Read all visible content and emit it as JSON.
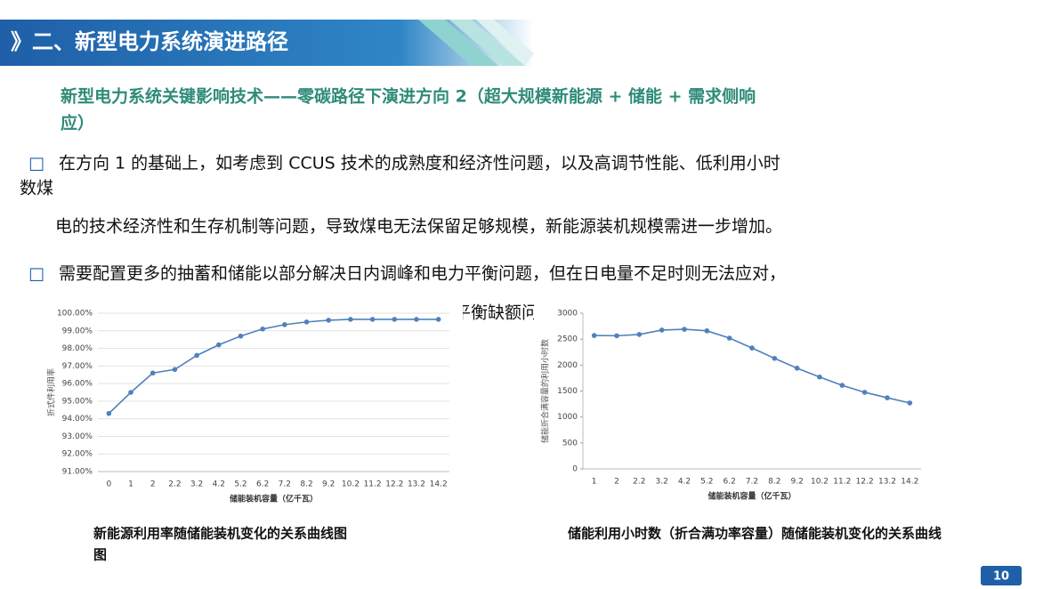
{
  "header": {
    "title": "》二、新型电力系统演进路径"
  },
  "subtitle": {
    "line1": "新型电力系统关键影响技术——零碳路径下演进方向 2（超大规模新能源 + 储能 + 需求侧响",
    "line2": "应）"
  },
  "bullets": [
    {
      "marker": "□",
      "lines": [
        "在方向 1 的基础上，如考虑到 CCUS 技术的成熟度和经济性问题，以及高调节性能、低利用小时",
        "数煤",
        "电的技术经济性和生存机制等问题，导致煤电无法保留足够规模，新能源装机规模需进一步增加。"
      ]
    },
    {
      "marker": "□",
      "lines": [
        "需要配置更多的抽蓄和储能以部分解决日内调峰和电力平衡问题，但在日电量不足时则无法应对，",
        "平衡缺额问"
      ]
    }
  ],
  "chart_data": [
    {
      "type": "line",
      "x_label": "储能装机容量（亿千瓦）",
      "y_label": "折式件利用率",
      "caption": "新能源利用率随储能装机变化的关系曲线图",
      "caption2": "图",
      "categories": [
        "0",
        "1",
        "2",
        "2.2",
        "3.2",
        "4.2",
        "5.2",
        "6.2",
        "7.2",
        "8.2",
        "9.2",
        "10.2",
        "11.2",
        "12.2",
        "13.2",
        "14.2"
      ],
      "values": [
        94.3,
        95.5,
        96.6,
        96.8,
        97.6,
        98.2,
        98.7,
        99.1,
        99.35,
        99.5,
        99.6,
        99.65,
        99.65,
        99.65,
        99.65,
        99.65
      ],
      "color": "#4f81bd",
      "grid": true,
      "ylim": [
        91,
        100
      ],
      "yticks": [
        {
          "value": 91,
          "label": "91.00%"
        },
        {
          "value": 92,
          "label": "92.00%"
        },
        {
          "value": 93,
          "label": "93.00%"
        },
        {
          "value": 94,
          "label": "94.00%"
        },
        {
          "value": 95,
          "label": "95.00%"
        },
        {
          "value": 96,
          "label": "96.00%"
        },
        {
          "value": 97,
          "label": "97.00%"
        },
        {
          "value": 98,
          "label": "98.00%"
        },
        {
          "value": 99,
          "label": "99.00%"
        },
        {
          "value": 100,
          "label": "100.00%"
        }
      ]
    },
    {
      "type": "line",
      "x_label": "储能装机容量（亿千瓦）",
      "y_label": "储能折合满容量的利用小时数",
      "caption": "储能利用小时数（折合满功率容量）随储能装机变化的关系曲线",
      "categories": [
        "1",
        "2",
        "2.2",
        "3.2",
        "4.2",
        "5.2",
        "6.2",
        "7.2",
        "8.2",
        "9.2",
        "10.2",
        "11.2",
        "12.2",
        "13.2",
        "14.2"
      ],
      "values": [
        2570,
        2565,
        2590,
        2675,
        2690,
        2660,
        2520,
        2330,
        2130,
        1940,
        1770,
        1610,
        1475,
        1370,
        1270
      ],
      "color": "#4f81bd",
      "grid": false,
      "ylim": [
        0,
        3000
      ],
      "yticks": [
        0,
        500,
        1000,
        1500,
        2000,
        2500,
        3000
      ]
    }
  ],
  "page_number": "10"
}
